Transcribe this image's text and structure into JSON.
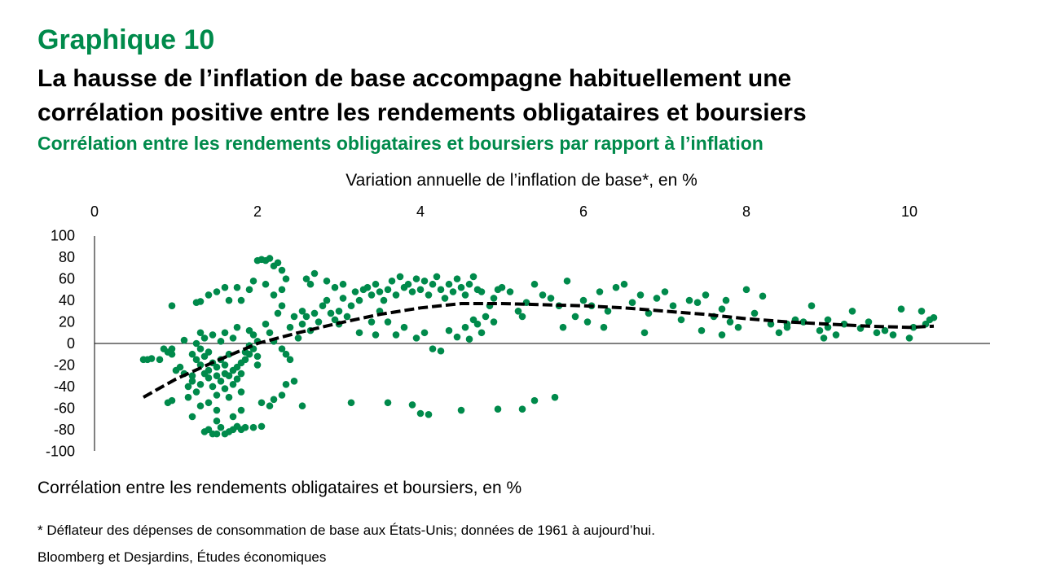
{
  "header": {
    "chart_number": "Graphique 10",
    "title_line1": "La hausse de l’inflation de base accompagne habituellement une",
    "title_line2": "corrélation positive entre les rendements obligataires et boursiers",
    "subtitle": "Corrélation entre les rendements obligataires et boursiers par rapport à l’inflation"
  },
  "footer": {
    "footnote": "* Déflateur des dépenses de consommation de base aux États-Unis; données de 1961 à aujourd’hui.",
    "source": "Bloomberg et Desjardins, Études économiques"
  },
  "colors": {
    "points": "#008A4B",
    "trend": "#000000",
    "axis": "#000000",
    "title_accent": "#008A4B"
  },
  "chart_data": {
    "type": "scatter",
    "xlabel": "Variation annuelle de l’inflation de base*, en %",
    "ylabel": "Corrélation entre les rendements obligataires et boursiers, en %",
    "xlim": [
      0,
      11
    ],
    "ylim": [
      -100,
      100
    ],
    "x_ticks": [
      0,
      2,
      4,
      6,
      8,
      10
    ],
    "y_ticks": [
      100,
      80,
      60,
      40,
      20,
      0,
      -20,
      -40,
      -60,
      -80,
      -100
    ],
    "x_axis_position": "top",
    "grid": false,
    "series": [
      {
        "type": "scatter",
        "points": [
          [
            0.6,
            -15
          ],
          [
            0.7,
            -14
          ],
          [
            0.8,
            -15
          ],
          [
            0.85,
            -5
          ],
          [
            0.95,
            -10
          ],
          [
            0.95,
            -5
          ],
          [
            0.9,
            -8
          ],
          [
            0.9,
            -55
          ],
          [
            0.95,
            -53
          ],
          [
            0.95,
            35
          ],
          [
            1.05,
            -22
          ],
          [
            1.1,
            -28
          ],
          [
            1.1,
            3
          ],
          [
            1.15,
            -40
          ],
          [
            1.15,
            -50
          ],
          [
            1.2,
            -30
          ],
          [
            1.2,
            -10
          ],
          [
            1.2,
            -35
          ],
          [
            1.25,
            -15
          ],
          [
            1.25,
            0
          ],
          [
            1.25,
            -45
          ],
          [
            1.3,
            -5
          ],
          [
            1.3,
            -20
          ],
          [
            1.3,
            -38
          ],
          [
            1.3,
            10
          ],
          [
            1.35,
            -28
          ],
          [
            1.35,
            -12
          ],
          [
            1.35,
            5
          ],
          [
            1.4,
            -25
          ],
          [
            1.4,
            -32
          ],
          [
            1.4,
            -55
          ],
          [
            1.4,
            -8
          ],
          [
            1.45,
            -18
          ],
          [
            1.45,
            -40
          ],
          [
            1.45,
            8
          ],
          [
            1.5,
            -30
          ],
          [
            1.5,
            -22
          ],
          [
            1.5,
            -62
          ],
          [
            1.5,
            -48
          ],
          [
            1.55,
            -35
          ],
          [
            1.55,
            -15
          ],
          [
            1.55,
            2
          ],
          [
            1.6,
            -28
          ],
          [
            1.6,
            -42
          ],
          [
            1.6,
            -20
          ],
          [
            1.6,
            10
          ],
          [
            1.65,
            -30
          ],
          [
            1.65,
            -10
          ],
          [
            1.65,
            -50
          ],
          [
            1.7,
            -25
          ],
          [
            1.7,
            -38
          ],
          [
            1.7,
            5
          ],
          [
            1.75,
            -22
          ],
          [
            1.75,
            -33
          ],
          [
            1.75,
            15
          ],
          [
            1.8,
            -18
          ],
          [
            1.8,
            -28
          ],
          [
            1.8,
            -45
          ],
          [
            1.85,
            -15
          ],
          [
            1.85,
            -8
          ],
          [
            1.9,
            -10
          ],
          [
            1.9,
            -2
          ],
          [
            1.9,
            12
          ],
          [
            1.95,
            -5
          ],
          [
            1.95,
            8
          ],
          [
            2.0,
            -12
          ],
          [
            2.0,
            2
          ],
          [
            2.0,
            -20
          ],
          [
            1.2,
            -68
          ],
          [
            1.3,
            -58
          ],
          [
            1.35,
            -82
          ],
          [
            1.4,
            -80
          ],
          [
            1.45,
            -84
          ],
          [
            1.5,
            -84
          ],
          [
            1.55,
            -78
          ],
          [
            1.6,
            -84
          ],
          [
            1.65,
            -82
          ],
          [
            1.7,
            -80
          ],
          [
            1.75,
            -77
          ],
          [
            1.8,
            -80
          ],
          [
            1.85,
            -78
          ],
          [
            1.95,
            -78
          ],
          [
            2.05,
            -77
          ],
          [
            1.5,
            -72
          ],
          [
            1.7,
            -68
          ],
          [
            1.8,
            -62
          ],
          [
            1.25,
            38
          ],
          [
            1.3,
            39
          ],
          [
            1.4,
            45
          ],
          [
            1.5,
            48
          ],
          [
            1.6,
            52
          ],
          [
            1.75,
            52
          ],
          [
            1.65,
            40
          ],
          [
            1.8,
            40
          ],
          [
            1.9,
            50
          ],
          [
            1.95,
            58
          ],
          [
            2.0,
            77
          ],
          [
            2.05,
            78
          ],
          [
            2.1,
            77
          ],
          [
            2.15,
            79
          ],
          [
            2.2,
            72
          ],
          [
            2.25,
            75
          ],
          [
            2.3,
            68
          ],
          [
            2.35,
            60
          ],
          [
            2.1,
            55
          ],
          [
            2.2,
            45
          ],
          [
            2.3,
            50
          ],
          [
            2.3,
            35
          ],
          [
            2.25,
            28
          ],
          [
            2.1,
            18
          ],
          [
            2.15,
            10
          ],
          [
            2.2,
            2
          ],
          [
            2.3,
            -5
          ],
          [
            2.35,
            -10
          ],
          [
            2.05,
            -55
          ],
          [
            2.15,
            -58
          ],
          [
            2.2,
            -52
          ],
          [
            2.3,
            -48
          ],
          [
            2.35,
            -38
          ],
          [
            2.45,
            -35
          ],
          [
            2.55,
            -58
          ],
          [
            2.4,
            -15
          ],
          [
            2.5,
            5
          ],
          [
            2.55,
            18
          ],
          [
            2.6,
            25
          ],
          [
            2.65,
            12
          ],
          [
            2.7,
            28
          ],
          [
            2.75,
            20
          ],
          [
            2.8,
            35
          ],
          [
            2.85,
            40
          ],
          [
            2.9,
            28
          ],
          [
            2.95,
            22
          ],
          [
            3.0,
            30
          ],
          [
            3.05,
            42
          ],
          [
            3.1,
            25
          ],
          [
            3.15,
            35
          ],
          [
            3.2,
            48
          ],
          [
            3.25,
            40
          ],
          [
            3.3,
            50
          ],
          [
            3.35,
            52
          ],
          [
            3.4,
            45
          ],
          [
            3.45,
            55
          ],
          [
            3.5,
            48
          ],
          [
            3.55,
            40
          ],
          [
            3.6,
            50
          ],
          [
            3.65,
            58
          ],
          [
            3.7,
            45
          ],
          [
            3.75,
            62
          ],
          [
            3.8,
            52
          ],
          [
            3.85,
            55
          ],
          [
            3.9,
            48
          ],
          [
            3.95,
            60
          ],
          [
            4.0,
            50
          ],
          [
            4.05,
            58
          ],
          [
            4.1,
            45
          ],
          [
            4.15,
            55
          ],
          [
            4.2,
            62
          ],
          [
            4.25,
            50
          ],
          [
            4.3,
            42
          ],
          [
            4.35,
            55
          ],
          [
            4.4,
            48
          ],
          [
            4.45,
            60
          ],
          [
            4.5,
            52
          ],
          [
            4.55,
            45
          ],
          [
            4.6,
            55
          ],
          [
            4.65,
            62
          ],
          [
            4.7,
            50
          ],
          [
            4.75,
            48
          ],
          [
            2.6,
            60
          ],
          [
            2.65,
            55
          ],
          [
            2.7,
            65
          ],
          [
            2.85,
            58
          ],
          [
            2.95,
            52
          ],
          [
            3.05,
            55
          ],
          [
            3.25,
            10
          ],
          [
            3.45,
            8
          ],
          [
            3.6,
            20
          ],
          [
            3.7,
            8
          ],
          [
            3.8,
            15
          ],
          [
            3.95,
            5
          ],
          [
            4.05,
            10
          ],
          [
            4.15,
            -5
          ],
          [
            4.25,
            -7
          ],
          [
            4.35,
            12
          ],
          [
            4.45,
            6
          ],
          [
            4.55,
            15
          ],
          [
            4.6,
            4
          ],
          [
            4.65,
            22
          ],
          [
            4.7,
            18
          ],
          [
            4.75,
            10
          ],
          [
            4.8,
            25
          ],
          [
            4.85,
            35
          ],
          [
            4.9,
            42
          ],
          [
            4.95,
            50
          ],
          [
            5.0,
            52
          ],
          [
            5.1,
            48
          ],
          [
            5.2,
            30
          ],
          [
            5.3,
            38
          ],
          [
            5.4,
            55
          ],
          [
            5.5,
            45
          ],
          [
            5.6,
            42
          ],
          [
            5.7,
            35
          ],
          [
            5.8,
            58
          ],
          [
            5.9,
            25
          ],
          [
            6.0,
            40
          ],
          [
            6.1,
            35
          ],
          [
            6.2,
            48
          ],
          [
            6.3,
            30
          ],
          [
            6.4,
            52
          ],
          [
            6.5,
            55
          ],
          [
            6.6,
            38
          ],
          [
            6.7,
            45
          ],
          [
            6.8,
            28
          ],
          [
            6.9,
            42
          ],
          [
            7.0,
            48
          ],
          [
            7.1,
            35
          ],
          [
            7.2,
            22
          ],
          [
            7.3,
            40
          ],
          [
            7.4,
            38
          ],
          [
            7.5,
            45
          ],
          [
            7.6,
            25
          ],
          [
            7.7,
            32
          ],
          [
            7.8,
            20
          ],
          [
            7.9,
            15
          ],
          [
            8.0,
            50
          ],
          [
            8.1,
            28
          ],
          [
            8.2,
            44
          ],
          [
            8.3,
            18
          ],
          [
            8.4,
            10
          ],
          [
            8.5,
            15
          ],
          [
            8.6,
            22
          ],
          [
            8.7,
            20
          ],
          [
            8.8,
            35
          ],
          [
            8.9,
            12
          ],
          [
            9.0,
            22
          ],
          [
            9.1,
            8
          ],
          [
            9.2,
            18
          ],
          [
            9.3,
            30
          ],
          [
            9.4,
            14
          ],
          [
            9.5,
            20
          ],
          [
            9.6,
            10
          ],
          [
            9.7,
            12
          ],
          [
            9.8,
            8
          ],
          [
            9.9,
            32
          ],
          [
            10.0,
            5
          ],
          [
            10.05,
            15
          ],
          [
            10.15,
            30
          ],
          [
            10.2,
            18
          ],
          [
            10.25,
            22
          ],
          [
            10.3,
            24
          ],
          [
            9.0,
            15
          ],
          [
            8.5,
            18
          ],
          [
            8.95,
            5
          ],
          [
            7.75,
            40
          ],
          [
            6.05,
            20
          ],
          [
            6.25,
            15
          ],
          [
            6.75,
            10
          ],
          [
            7.45,
            12
          ],
          [
            7.7,
            8
          ],
          [
            5.75,
            15
          ],
          [
            5.25,
            25
          ],
          [
            4.9,
            20
          ],
          [
            3.15,
            -55
          ],
          [
            3.6,
            -55
          ],
          [
            3.9,
            -57
          ],
          [
            4.0,
            -65
          ],
          [
            4.1,
            -66
          ],
          [
            4.5,
            -62
          ],
          [
            4.95,
            -61
          ],
          [
            5.25,
            -61
          ],
          [
            5.4,
            -53
          ],
          [
            5.65,
            -50
          ],
          [
            0.65,
            -15
          ],
          [
            1.0,
            -25
          ],
          [
            2.4,
            15
          ],
          [
            2.45,
            25
          ],
          [
            2.55,
            30
          ],
          [
            3.0,
            18
          ],
          [
            3.4,
            20
          ],
          [
            3.5,
            30
          ]
        ]
      },
      {
        "type": "line",
        "style": "dashed",
        "points": [
          [
            0.6,
            -50
          ],
          [
            1.0,
            -33
          ],
          [
            1.5,
            -16
          ],
          [
            2.0,
            0
          ],
          [
            2.5,
            10
          ],
          [
            3.0,
            19
          ],
          [
            3.5,
            27
          ],
          [
            4.0,
            33
          ],
          [
            4.5,
            37
          ],
          [
            5.0,
            37
          ],
          [
            5.5,
            36
          ],
          [
            6.0,
            35
          ],
          [
            6.5,
            33
          ],
          [
            7.0,
            30
          ],
          [
            7.5,
            27
          ],
          [
            8.0,
            23
          ],
          [
            8.5,
            20
          ],
          [
            9.0,
            18
          ],
          [
            9.5,
            16
          ],
          [
            10.0,
            15
          ],
          [
            10.3,
            16
          ]
        ]
      }
    ]
  }
}
